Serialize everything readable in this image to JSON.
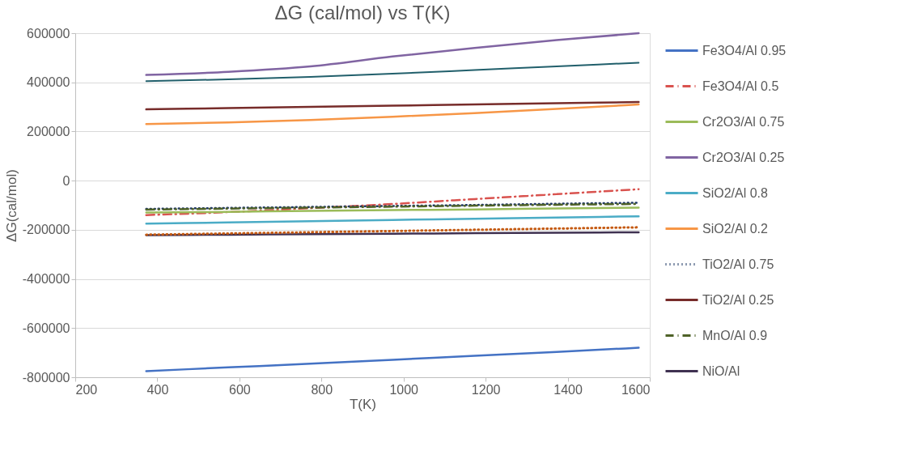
{
  "chart_data": {
    "type": "line",
    "title": "ΔG (cal/mol) vs T(K)",
    "xlabel": "T(K)",
    "ylabel": "ΔG(cal/mol)",
    "x": [
      373,
      573,
      773,
      973,
      1173,
      1373,
      1573
    ],
    "xlim": [
      200,
      1600
    ],
    "xticks": [
      200,
      400,
      600,
      800,
      1000,
      1200,
      1400,
      1600
    ],
    "ylim": [
      -800000,
      600000
    ],
    "yticks": [
      -800000,
      -600000,
      -400000,
      -200000,
      0,
      200000,
      400000,
      600000
    ],
    "grid": "y",
    "legend": "right",
    "marker": "none",
    "series": [
      {
        "name": "Fe3O4/Al 0.95",
        "color": "#4472c4",
        "line_style": "solid",
        "values": [
          -775000,
          -760000,
          -745000,
          -729000,
          -713000,
          -697000,
          -680000
        ]
      },
      {
        "name": "Fe3O4/Al  0.5",
        "color": "#d9534f",
        "line_style": "dashdot",
        "values": [
          -140000,
          -128000,
          -112000,
          -95000,
          -75000,
          -55000,
          -35000
        ]
      },
      {
        "name": "Cr2O3/Al 0.75",
        "color": "#9bbb59",
        "line_style": "solid",
        "values": [
          -130000,
          -127000,
          -123000,
          -120000,
          -117000,
          -113000,
          -110000
        ]
      },
      {
        "name": "Cr2O3/Al  0.25",
        "color": "#8064a2",
        "line_style": "solid",
        "values": [
          430000,
          443000,
          465000,
          505000,
          540000,
          572000,
          600000
        ]
      },
      {
        "name": "SiO2/Al 0.8",
        "color": "#4bacc6",
        "line_style": "solid",
        "values": [
          -175000,
          -170000,
          -165000,
          -160000,
          -155000,
          -150000,
          -145000
        ]
      },
      {
        "name": "SiO2/Al 0.2",
        "color": "#f79646",
        "line_style": "solid",
        "values": [
          230000,
          237000,
          247000,
          260000,
          275000,
          292000,
          310000
        ]
      },
      {
        "name": "TiO2/Al 0.75",
        "color": "#1f3864",
        "line_style": "dotted",
        "values": [
          -115000,
          -111000,
          -107000,
          -103000,
          -99000,
          -94000,
          -90000
        ]
      },
      {
        "name": "TiO2/Al  0.25",
        "color": "#772c2a",
        "line_style": "solid",
        "values": [
          290000,
          295000,
          300000,
          305000,
          310000,
          315000,
          320000
        ]
      },
      {
        "name": "MnO/Al 0.9",
        "color": "#4f6228",
        "line_style": "dashdot",
        "values": [
          -118000,
          -114000,
          -110000,
          -106000,
          -102000,
          -98000,
          -95000
        ]
      },
      {
        "name": "NiO/Al",
        "color": "#3f3151",
        "line_style": "solid",
        "values": [
          -222000,
          -220000,
          -218000,
          -216000,
          -214000,
          -212000,
          -210000
        ]
      },
      {
        "color": "#215f6b",
        "line_style": "solid",
        "values": [
          405000,
          412000,
          422000,
          435000,
          450000,
          465000,
          480000
        ]
      },
      {
        "color": "#c55a11",
        "line_style": "dotted",
        "values": [
          -220000,
          -215000,
          -210000,
          -205000,
          -200000,
          -195000,
          -190000
        ]
      }
    ]
  }
}
